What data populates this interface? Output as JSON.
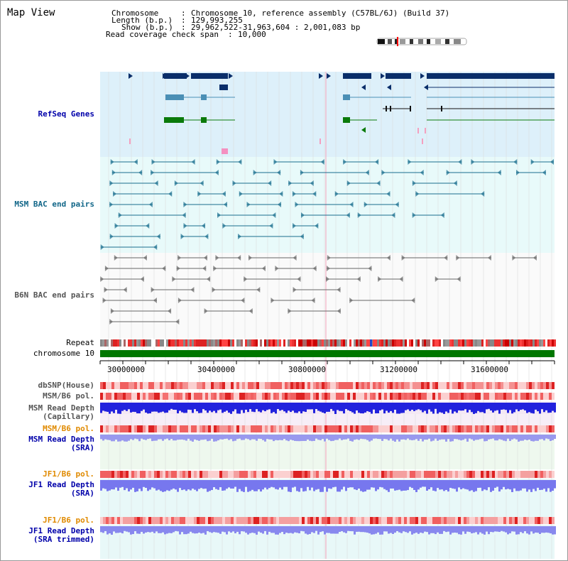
{
  "page_title": "Map View",
  "header": {
    "chromosome_label": "Chromosome",
    "chromosome_value": "Chromosome 10, reference assembly (C57BL/6J) (Build 37)",
    "length_label": "Length (b.p.)",
    "length_value": "129,993,255",
    "show_label": "Show (b.p.)",
    "show_value": "29,962,522-31,963,604 : 2,001,083 bp",
    "coverage_label": "Read coverage check span",
    "coverage_value": "10,000"
  },
  "tracks": {
    "refseq": "RefSeq Genes",
    "msm_bac": "MSM BAC end pairs",
    "b6n_bac": "B6N BAC end pairs",
    "repeat": "Repeat",
    "chromosome": "chromosome 10",
    "dbsnp": "dbSNP(House)",
    "msm_b6_pol": "MSM/B6 pol.",
    "msm_depth_cap_1": "MSM Read Depth",
    "msm_depth_cap_2": "(Capillary)",
    "msm_b6_pol_2": "MSM/B6 pol.",
    "msm_depth_sra_1": "MSM Read Depth",
    "msm_depth_sra_2": "(SRA)",
    "jf1_b6_pol": "JF1/B6 pol.",
    "jf1_depth_sra_1": "JF1 Read Depth",
    "jf1_depth_sra_2": "(SRA)",
    "jf1_b6_pol_2": "JF1/B6 pol.",
    "jf1_depth_trim_1": "JF1 Read Depth",
    "jf1_depth_trim_2": "(SRA trimmed)"
  },
  "axis_ticks": [
    "30000000",
    "30400000",
    "30800000",
    "31200000",
    "31600000"
  ],
  "colors": {
    "refseq_bg": "#ddf0fa",
    "bac_bg": "#e8fafa",
    "gene_dark": "#0a2e6a",
    "gene_mid": "#4a8fb5",
    "gene_green": "#0a7a0a",
    "chromosome_bar": "#007700",
    "depth_blue": "#2222dd",
    "depth_light": "#8888ff"
  }
}
